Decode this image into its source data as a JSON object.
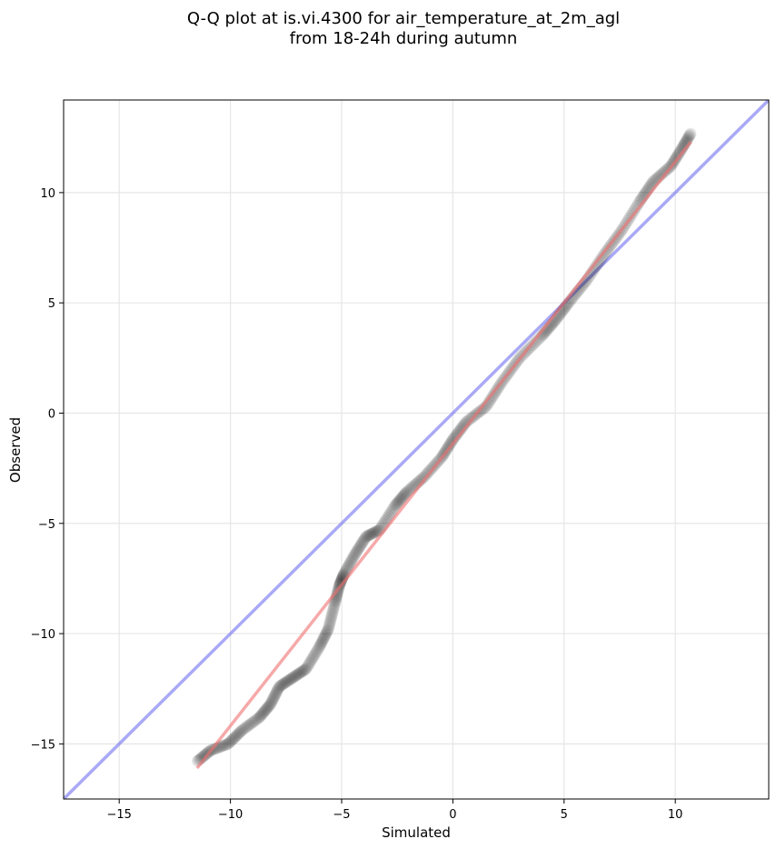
{
  "chart_data": {
    "type": "scatter",
    "title": [
      "Q-Q plot at is.vi.4300 for air_temperature_at_2m_agl",
      "from 18-24h during autumn"
    ],
    "xlabel": "Simulated",
    "ylabel": "Observed",
    "xlim": [
      -17.5,
      14.2
    ],
    "ylim": [
      -17.5,
      14.2
    ],
    "xticks": [
      -15,
      -10,
      -5,
      0,
      5,
      10
    ],
    "yticks": [
      -15,
      -10,
      -5,
      0,
      5,
      10
    ],
    "xtick_labels": [
      "−15",
      "−10",
      "−5",
      "0",
      "5",
      "10"
    ],
    "ytick_labels": [
      "−15",
      "−10",
      "−5",
      "0",
      "5",
      "10"
    ],
    "grid": true,
    "reference_line": {
      "from": [
        -17.5,
        -17.5
      ],
      "to": [
        14.2,
        14.2
      ],
      "color": "#6f6ff0"
    },
    "fit_line": {
      "from": [
        -11.5,
        -16.1
      ],
      "to": [
        10.7,
        12.3
      ],
      "color": "#f07070"
    },
    "quantile_anchors": [
      [
        -11.5,
        -15.8
      ],
      [
        -10.9,
        -15.3
      ],
      [
        -10.1,
        -15.0
      ],
      [
        -9.5,
        -14.4
      ],
      [
        -8.7,
        -13.8
      ],
      [
        -8.2,
        -13.2
      ],
      [
        -7.8,
        -12.4
      ],
      [
        -7.2,
        -12.0
      ],
      [
        -6.6,
        -11.6
      ],
      [
        -6.0,
        -10.6
      ],
      [
        -5.6,
        -9.8
      ],
      [
        -5.3,
        -8.6
      ],
      [
        -5.1,
        -7.8
      ],
      [
        -4.9,
        -7.3
      ],
      [
        -4.4,
        -6.4
      ],
      [
        -3.9,
        -5.6
      ],
      [
        -3.3,
        -5.3
      ],
      [
        -2.6,
        -4.2
      ],
      [
        -2.1,
        -3.6
      ],
      [
        -1.3,
        -2.9
      ],
      [
        -0.5,
        -2.0
      ],
      [
        0.0,
        -1.2
      ],
      [
        0.6,
        -0.4
      ],
      [
        1.5,
        0.3
      ],
      [
        2.2,
        1.4
      ],
      [
        3.0,
        2.5
      ],
      [
        4.0,
        3.5
      ],
      [
        4.6,
        4.2
      ],
      [
        5.2,
        5.0
      ],
      [
        6.0,
        6.0
      ],
      [
        6.8,
        7.2
      ],
      [
        7.6,
        8.3
      ],
      [
        8.4,
        9.6
      ],
      [
        9.0,
        10.5
      ],
      [
        9.8,
        11.2
      ],
      [
        10.3,
        12.0
      ],
      [
        10.7,
        12.7
      ]
    ],
    "point_count": 420,
    "point_color": "#000000",
    "accent_overlay_color": "#000080"
  }
}
